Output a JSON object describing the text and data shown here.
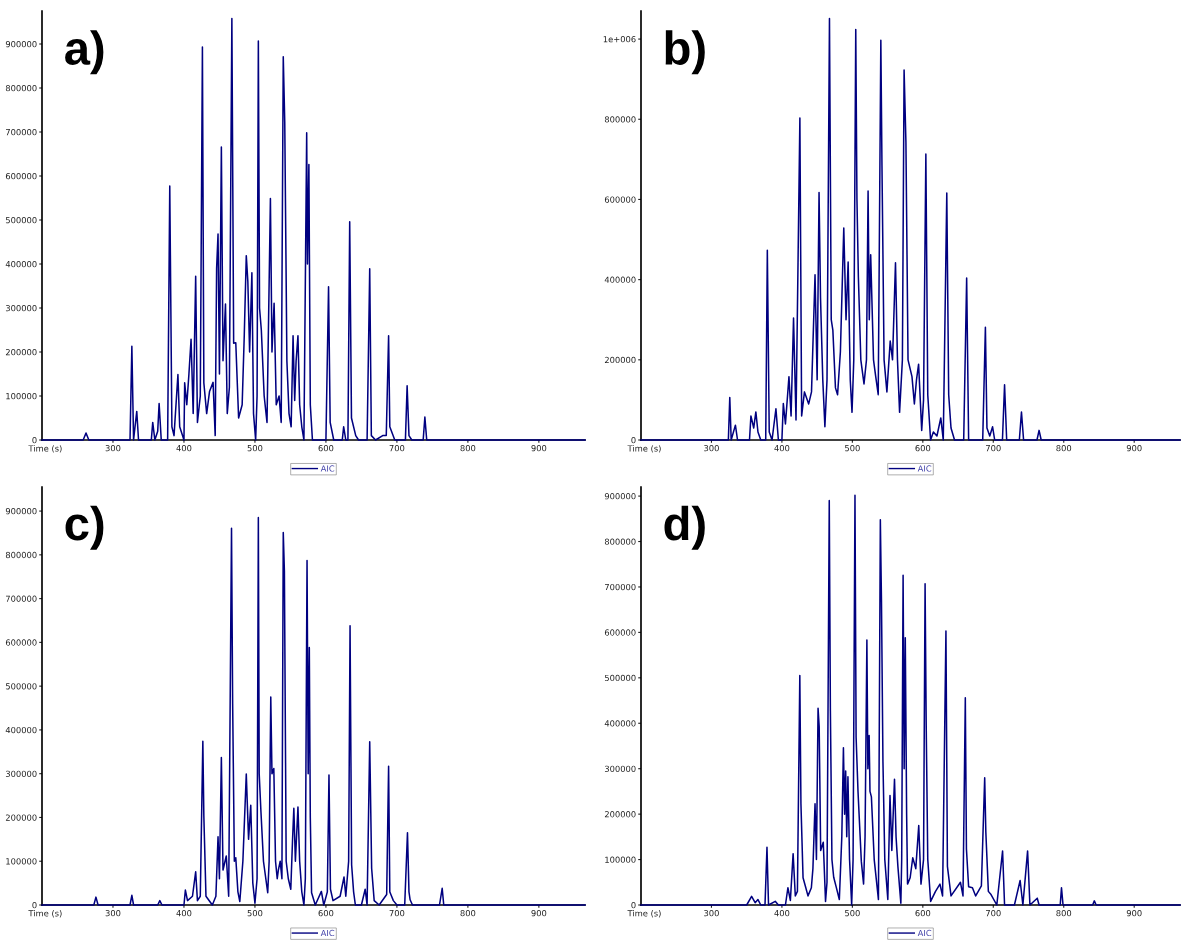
{
  "chart_data": [
    {
      "type": "line",
      "annotations": [
        "a)"
      ],
      "xlabel": "Time (s)",
      "xlim": [
        200,
        965
      ],
      "xticks": [
        300,
        400,
        500,
        600,
        700,
        800,
        900
      ],
      "ylim": [
        0,
        975000
      ],
      "yticks": [
        0,
        100000,
        200000,
        300000,
        400000,
        500000,
        600000,
        700000,
        800000,
        900000
      ],
      "legend": "bottom",
      "grid": false,
      "marker": "none",
      "line_style": "solid",
      "series": [
        {
          "name": "AIC",
          "color": "#000080",
          "x": [
            200,
            258,
            262,
            266,
            324,
            326.6,
            329,
            333.5,
            336,
            354,
            356,
            359,
            363,
            365,
            368,
            377,
            380,
            383,
            386,
            391.5,
            394,
            400,
            401,
            404,
            407,
            410,
            413,
            416.5,
            419,
            423,
            426,
            428,
            432,
            436,
            441,
            444,
            446,
            448,
            450,
            452.7,
            455,
            458.5,
            461,
            464,
            467.5,
            470,
            473,
            477,
            482,
            485,
            487.8,
            490,
            492.5,
            495.7,
            498,
            501,
            503,
            504.8,
            506.5,
            509,
            513,
            517,
            521.8,
            524,
            527,
            530,
            534,
            537,
            539.9,
            542,
            545,
            548,
            551,
            553.7,
            556,
            558,
            560.6,
            563,
            566,
            569,
            572.9,
            574,
            576,
            578,
            581,
            600,
            603.7,
            606,
            611,
            623,
            625,
            628,
            631,
            633.5,
            636,
            642,
            646,
            658,
            661.7,
            664,
            670,
            680,
            685,
            688.3,
            690,
            697,
            712,
            714.4,
            717,
            721,
            737,
            739.4,
            742,
            965
          ],
          "values": [
            0,
            0,
            16000,
            0,
            0,
            213000,
            0,
            65000,
            0,
            0,
            40000,
            0,
            20000,
            83000,
            0,
            0,
            577000,
            30000,
            10000,
            149000,
            30000,
            0,
            130000,
            80000,
            150000,
            229000,
            60000,
            372000,
            40000,
            100000,
            893000,
            130000,
            60000,
            110000,
            131000,
            10000,
            390000,
            468000,
            150000,
            666000,
            180000,
            309000,
            60000,
            120000,
            958000,
            220000,
            221000,
            50000,
            80000,
            240000,
            419000,
            360000,
            200000,
            380000,
            60000,
            0,
            100000,
            907000,
            300000,
            250000,
            100000,
            40000,
            549000,
            200000,
            311000,
            80000,
            100000,
            40000,
            871000,
            722000,
            180000,
            60000,
            30000,
            237000,
            90000,
            180000,
            237000,
            80000,
            30000,
            0,
            698000,
            400000,
            626000,
            80000,
            0,
            0,
            348000,
            40000,
            0,
            0,
            30000,
            0,
            0,
            496000,
            50000,
            10000,
            0,
            0,
            389000,
            10000,
            0,
            10000,
            10000,
            237000,
            30000,
            0,
            0,
            123000,
            10000,
            0,
            0,
            52000,
            0,
            0
          ]
        }
      ]
    },
    {
      "type": "line",
      "annotations": [
        "b)"
      ],
      "xlabel": "Time (s)",
      "xlim": [
        200,
        965
      ],
      "xticks": [
        300,
        400,
        500,
        600,
        700,
        800,
        900
      ],
      "ylim": [
        0,
        1070000
      ],
      "yticks": [
        0,
        200000,
        400000,
        600000,
        800000,
        {
          "value": 1000000,
          "label": "1e+006"
        }
      ],
      "legend": "bottom",
      "grid": false,
      "marker": "none",
      "line_style": "solid",
      "series": [
        {
          "name": "AIC",
          "color": "#000080",
          "x": [
            200,
            324,
            326,
            328,
            334,
            337,
            354,
            356,
            360,
            363,
            366,
            370,
            377,
            379.3,
            382,
            386,
            391.5,
            395,
            400,
            402,
            405,
            410,
            413,
            416.5,
            420,
            425.5,
            428,
            432,
            438,
            442,
            447,
            450,
            452.7,
            454.8,
            458,
            461,
            464,
            467.5,
            470,
            472.3,
            476,
            479,
            483,
            487.8,
            491,
            494,
            497,
            499.5,
            502,
            504.8,
            506.5,
            508.5,
            512,
            516.5,
            520,
            522.3,
            524,
            526,
            530,
            533,
            536.7,
            540.4,
            542,
            545,
            549,
            553.7,
            557,
            561.2,
            564,
            567,
            571,
            573.4,
            576,
            579,
            584.6,
            588,
            591,
            594,
            598.4,
            601,
            604.3,
            607,
            611,
            615,
            620,
            625.5,
            629,
            634,
            636.7,
            640,
            645,
            658,
            662.2,
            665,
            670,
            685,
            688.8,
            691,
            695,
            699,
            702,
            713,
            716,
            719,
            737,
            740,
            743,
            762,
            765,
            768,
            965
          ],
          "values": [
            0,
            0,
            106000,
            0,
            37000,
            0,
            0,
            60000,
            30000,
            70000,
            20000,
            0,
            0,
            473000,
            20000,
            0,
            78000,
            0,
            0,
            91000,
            40000,
            158000,
            60000,
            304000,
            50000,
            803000,
            60000,
            120000,
            90000,
            120000,
            412000,
            150000,
            617000,
            354000,
            150000,
            33000,
            150000,
            1051000,
            300000,
            274000,
            130000,
            113000,
            220000,
            529000,
            300000,
            444000,
            150000,
            69000,
            200000,
            1024000,
            600000,
            408000,
            200000,
            140000,
            200000,
            621000,
            300000,
            462000,
            200000,
            160000,
            113000,
            997000,
            685000,
            200000,
            120000,
            247000,
            200000,
            442000,
            200000,
            69000,
            200000,
            923000,
            743000,
            200000,
            158000,
            90000,
            150000,
            189000,
            24000,
            100000,
            713000,
            113000,
            0,
            20000,
            10000,
            55000,
            0,
            616000,
            113000,
            30000,
            0,
            0,
            404000,
            0,
            0,
            0,
            281000,
            30000,
            10000,
            33000,
            0,
            0,
            138000,
            0,
            0,
            70000,
            0,
            0,
            24000,
            0,
            0
          ]
        }
      ]
    },
    {
      "type": "line",
      "annotations": [
        "c)"
      ],
      "xlabel": "Time (s)",
      "xlim": [
        200,
        965
      ],
      "xticks": [
        300,
        400,
        500,
        600,
        700,
        800,
        900
      ],
      "ylim": [
        0,
        955000
      ],
      "yticks": [
        0,
        100000,
        200000,
        300000,
        400000,
        500000,
        600000,
        700000,
        800000,
        900000
      ],
      "legend": "bottom",
      "grid": false,
      "marker": "none",
      "line_style": "solid",
      "series": [
        {
          "name": "AIC",
          "color": "#000080",
          "x": [
            200,
            273,
            276,
            279,
            324,
            326.6,
            329,
            363,
            366,
            369,
            400,
            402,
            405,
            412,
            416.5,
            419,
            423,
            426.6,
            428,
            431,
            440,
            445,
            448,
            450,
            452.7,
            455,
            459.6,
            463,
            467,
            468.6,
            471,
            473,
            476,
            478.7,
            483,
            487.8,
            491,
            494.1,
            497,
            500,
            503,
            504.8,
            506,
            508.5,
            512,
            518,
            520,
            522.3,
            524,
            526.6,
            529,
            531.4,
            533,
            535.6,
            538,
            539.9,
            541.5,
            544,
            547,
            550.5,
            553,
            554.8,
            557,
            560.6,
            563,
            566,
            569,
            571,
            573.4,
            575,
            576.6,
            578,
            579.8,
            585,
            593.6,
            597,
            602,
            604.3,
            606.4,
            610,
            620,
            625.5,
            628,
            632,
            634,
            636.2,
            639,
            641.5,
            650,
            655.3,
            658,
            661.7,
            664.4,
            668,
            675,
            685.6,
            688.3,
            690,
            691.5,
            695,
            700,
            711,
            714.9,
            717,
            718.6,
            722,
            760,
            763.8,
            766,
            965
          ],
          "values": [
            0,
            0,
            18000,
            0,
            0,
            22000,
            0,
            0,
            10000,
            0,
            0,
            34000,
            10000,
            20000,
            76000,
            10000,
            20000,
            374000,
            204000,
            20000,
            0,
            20000,
            156000,
            60000,
            337000,
            80000,
            112000,
            20000,
            861000,
            460000,
            100000,
            108000,
            30000,
            8000,
            100000,
            299000,
            150000,
            228000,
            50000,
            4000,
            60000,
            885000,
            300000,
            212000,
            100000,
            28000,
            100000,
            475000,
            300000,
            312000,
            100000,
            60000,
            80000,
            100000,
            60000,
            851000,
            763000,
            100000,
            60000,
            36000,
            150000,
            221000,
            100000,
            224000,
            100000,
            30000,
            0,
            60000,
            787000,
            300000,
            588000,
            200000,
            28000,
            0,
            31000,
            0,
            30000,
            297000,
            36000,
            10000,
            20000,
            64000,
            20000,
            100000,
            638000,
            92000,
            30000,
            0,
            0,
            36000,
            0,
            373000,
            84000,
            10000,
            0,
            24000,
            317000,
            30000,
            24000,
            10000,
            0,
            0,
            165000,
            30000,
            12000,
            0,
            0,
            38000,
            0,
            0
          ]
        }
      ]
    },
    {
      "type": "line",
      "annotations": [
        "d)"
      ],
      "xlabel": "Time (s)",
      "xlim": [
        200,
        965
      ],
      "xticks": [
        300,
        400,
        500,
        600,
        700,
        800,
        900
      ],
      "ylim": [
        0,
        920000
      ],
      "yticks": [
        0,
        100000,
        200000,
        300000,
        400000,
        500000,
        600000,
        700000,
        800000,
        900000
      ],
      "legend": "bottom",
      "grid": false,
      "marker": "none",
      "line_style": "solid",
      "series": [
        {
          "name": "AIC",
          "color": "#000080",
          "x": [
            200,
            350,
            357,
            362,
            366,
            370,
            376,
            378.8,
            381,
            390.5,
            395,
            405,
            408.5,
            412,
            415.9,
            419,
            422,
            425.4,
            427,
            430,
            433.9,
            437,
            441.8,
            444,
            447,
            449,
            451.3,
            452.9,
            455,
            458.7,
            461.9,
            464,
            467.2,
            468.8,
            471,
            473.5,
            477,
            481.5,
            485,
            487.3,
            489,
            490.5,
            492,
            493.7,
            496,
            499,
            501,
            503.7,
            505.3,
            508,
            512.7,
            515.9,
            518,
            520.6,
            522,
            523.8,
            525,
            527,
            531,
            537,
            539.7,
            541.3,
            543.4,
            546,
            550.3,
            553.4,
            556,
            559.8,
            562,
            564.6,
            568.8,
            570,
            572,
            573.5,
            575.1,
            577,
            578.3,
            582,
            585.7,
            590,
            594.2,
            597.4,
            601,
            603.2,
            604.8,
            607,
            611.1,
            618,
            624.3,
            628,
            632.8,
            634.9,
            640,
            653.4,
            657,
            660.3,
            661.9,
            665,
            670.4,
            675,
            683.1,
            687.8,
            689.4,
            693,
            696.8,
            705,
            713.2,
            716,
            730,
            738.1,
            742,
            748.7,
            752,
            762.4,
            765,
            795,
            796.8,
            799,
            841,
            843.4,
            846,
            965
          ],
          "values": [
            0,
            0,
            19000,
            5000,
            12000,
            0,
            0,
            127000,
            0,
            8000,
            0,
            0,
            38000,
            10000,
            113000,
            20000,
            30000,
            505000,
            223000,
            60000,
            38000,
            20000,
            38000,
            80000,
            223000,
            100000,
            433000,
            392000,
            120000,
            138000,
            8000,
            50000,
            890000,
            427000,
            100000,
            61000,
            40000,
            12000,
            150000,
            346000,
            200000,
            295000,
            150000,
            282000,
            100000,
            0,
            100000,
            902000,
            369000,
            250000,
            96000,
            46000,
            150000,
            583000,
            300000,
            373000,
            250000,
            238000,
            100000,
            12000,
            848000,
            669000,
            315000,
            100000,
            12000,
            241000,
            120000,
            277000,
            150000,
            85000,
            4000,
            100000,
            726000,
            300000,
            588000,
            200000,
            46000,
            60000,
            104000,
            80000,
            175000,
            46000,
            100000,
            707000,
            394000,
            100000,
            8000,
            30000,
            46000,
            20000,
            603000,
            85000,
            20000,
            50000,
            20000,
            456000,
            123000,
            40000,
            38000,
            20000,
            42000,
            280000,
            161000,
            30000,
            23000,
            0,
            119000,
            0,
            0,
            54000,
            0,
            119000,
            0,
            15000,
            0,
            0,
            38000,
            0,
            0,
            9000,
            0,
            0
          ]
        }
      ]
    }
  ]
}
